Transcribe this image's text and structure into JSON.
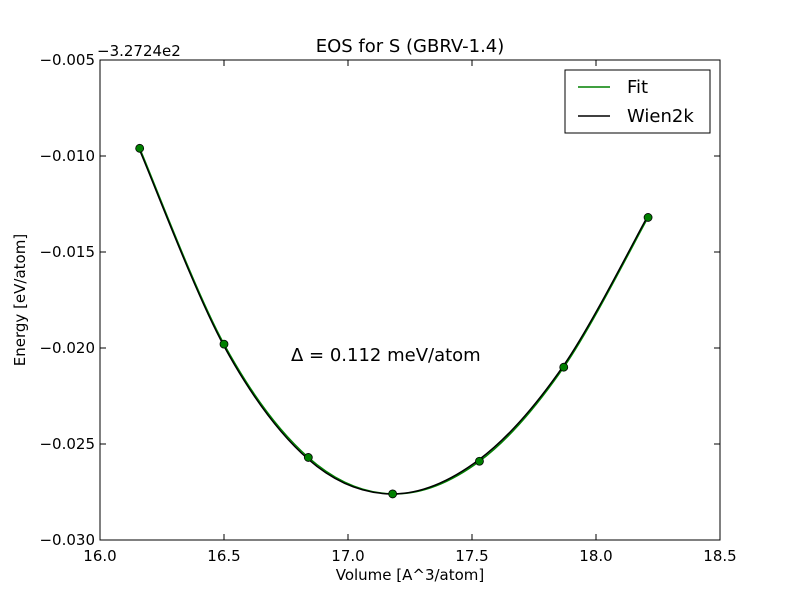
{
  "chart_data": {
    "type": "line",
    "title": "EOS for S (GBRV-1.4)",
    "xlabel": "Volume [A^3/atom]",
    "ylabel": "Energy [eV/atom]",
    "y_offset_label": "−3.2724e2",
    "xlim": [
      16.0,
      18.5
    ],
    "ylim": [
      -0.03,
      -0.005
    ],
    "x_ticks": [
      16.0,
      16.5,
      17.0,
      17.5,
      18.0,
      18.5
    ],
    "x_tick_labels": [
      "16.0",
      "16.5",
      "17.0",
      "17.5",
      "18.0",
      "18.5"
    ],
    "y_ticks": [
      -0.005,
      -0.01,
      -0.015,
      -0.02,
      -0.025,
      -0.03
    ],
    "y_tick_labels": [
      "−0.005",
      "−0.010",
      "−0.015",
      "−0.020",
      "−0.025",
      "−0.030"
    ],
    "grid": false,
    "legend_position": "top-right",
    "annotation": "Δ = 0.112 meV/atom",
    "points": {
      "x": [
        16.16,
        16.5,
        16.84,
        17.18,
        17.53,
        17.87,
        18.21
      ],
      "y": [
        -0.0096,
        -0.0198,
        -0.0257,
        -0.0276,
        -0.0259,
        -0.021,
        -0.0132
      ],
      "color": "#007f00"
    },
    "series": [
      {
        "name": "Fit",
        "color": "#008000",
        "x": [
          16.16,
          16.5,
          16.84,
          17.18,
          17.53,
          17.87,
          18.21
        ],
        "y": [
          -0.0096,
          -0.0198,
          -0.0257,
          -0.0276,
          -0.0259,
          -0.021,
          -0.0132
        ]
      },
      {
        "name": "Wien2k",
        "color": "#000000",
        "x": [
          16.16,
          16.5,
          16.84,
          17.18,
          17.53,
          17.87,
          18.21
        ],
        "y": [
          -0.0097,
          -0.0199,
          -0.0258,
          -0.0276,
          -0.0258,
          -0.0209,
          -0.0131
        ]
      }
    ]
  }
}
